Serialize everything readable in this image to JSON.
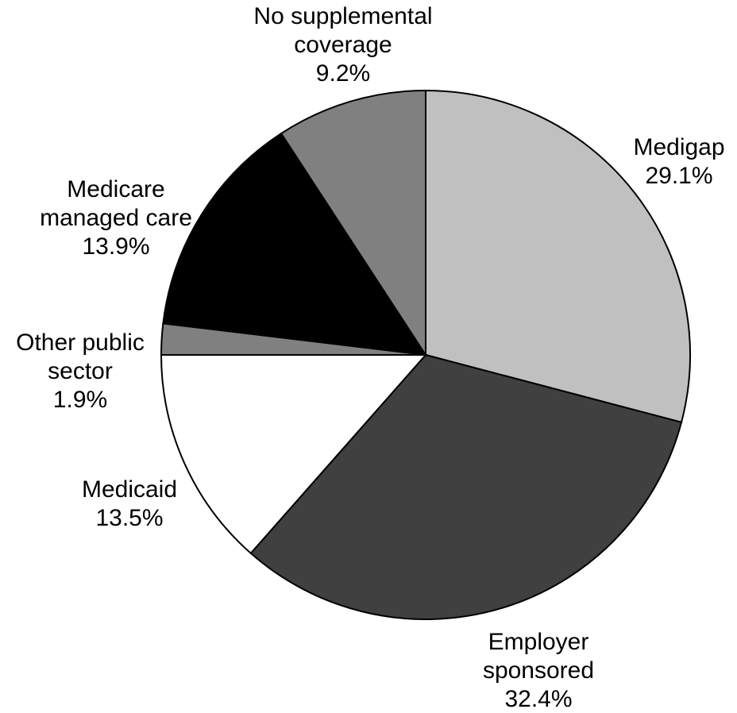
{
  "chart_data": {
    "type": "pie",
    "start_angle_deg": 0,
    "direction": "clockwise",
    "slices": [
      {
        "label_lines": [
          "Medigap"
        ],
        "value_text": "29.1%",
        "value": 29.1,
        "color": "#c0c0c0"
      },
      {
        "label_lines": [
          "Employer",
          "sponsored"
        ],
        "value_text": "32.4%",
        "value": 32.4,
        "color": "#404040"
      },
      {
        "label_lines": [
          "Medicaid"
        ],
        "value_text": "13.5%",
        "value": 13.5,
        "color": "#ffffff"
      },
      {
        "label_lines": [
          "Other public",
          "sector"
        ],
        "value_text": "1.9%",
        "value": 1.9,
        "color": "#808080"
      },
      {
        "label_lines": [
          "Medicare",
          "managed care"
        ],
        "value_text": "13.9%",
        "value": 13.9,
        "color": "#000000"
      },
      {
        "label_lines": [
          "No supplemental",
          "coverage"
        ],
        "value_text": "9.2%",
        "value": 9.2,
        "color": "#808080"
      }
    ],
    "legend": "none"
  }
}
